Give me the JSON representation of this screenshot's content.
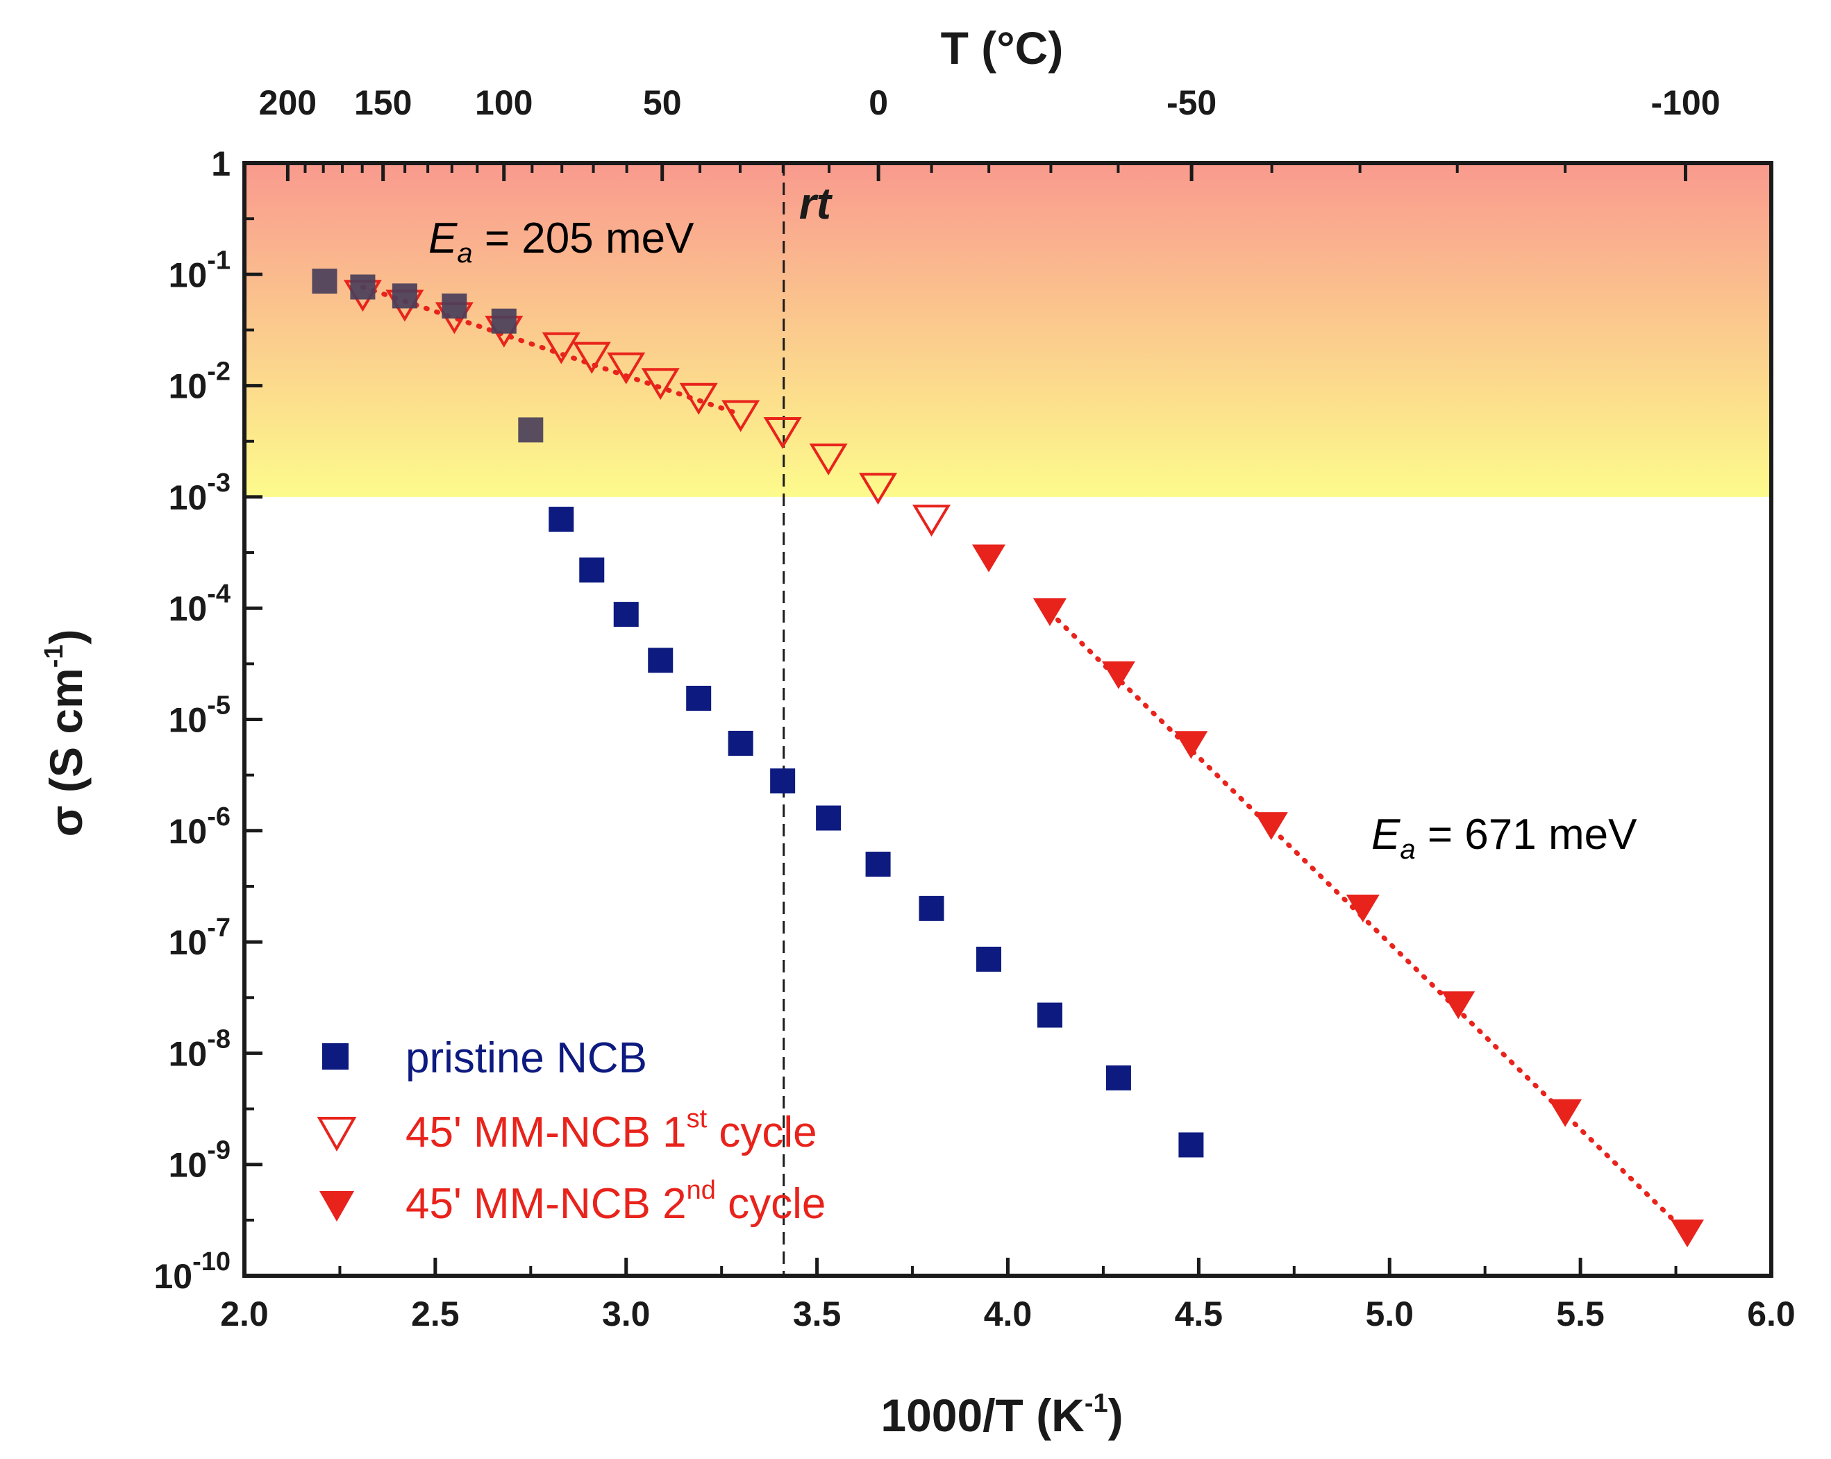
{
  "chart_data": {
    "type": "scatter",
    "xlabel": "1000/T (K",
    "xlabel_sup": "-1",
    "xlabel_end": ")",
    "ylabel": "σ (S cm",
    "ylabel_sup": "-1",
    "ylabel_end": ")",
    "top_axis_label": "T (°C)",
    "xlim": [
      2.0,
      6.0
    ],
    "ylim_log10": [
      -10,
      0
    ],
    "y_scale": "log",
    "x_ticks": [
      "2.0",
      "2.5",
      "3.0",
      "3.5",
      "4.0",
      "4.5",
      "5.0",
      "5.5",
      "6.0"
    ],
    "y_ticks": [
      {
        "exp": 0,
        "label": "1",
        "sup": ""
      },
      {
        "exp": -1,
        "label": "10",
        "sup": "-1"
      },
      {
        "exp": -2,
        "label": "10",
        "sup": "-2"
      },
      {
        "exp": -3,
        "label": "10",
        "sup": "-3"
      },
      {
        "exp": -4,
        "label": "10",
        "sup": "-4"
      },
      {
        "exp": -5,
        "label": "10",
        "sup": "-5"
      },
      {
        "exp": -6,
        "label": "10",
        "sup": "-6"
      },
      {
        "exp": -7,
        "label": "10",
        "sup": "-7"
      },
      {
        "exp": -8,
        "label": "10",
        "sup": "-8"
      },
      {
        "exp": -9,
        "label": "10",
        "sup": "-9"
      },
      {
        "exp": -10,
        "label": "10",
        "sup": "-10"
      }
    ],
    "top_ticks_celsius": [
      "200",
      "150",
      "100",
      "50",
      "0",
      "-50",
      "-100"
    ],
    "highlight_band": {
      "y_from": 0.001,
      "y_to": 1,
      "color_top": "#f99a8e",
      "color_bottom": "#fdfb8c"
    },
    "reference_line": {
      "x": 3.4129,
      "label": "rt"
    },
    "series": [
      {
        "name": "pristine NCB",
        "marker": "square",
        "color": "#0d1a80",
        "points": [
          [
            2.21,
            0.087
          ],
          [
            2.31,
            0.077
          ],
          [
            2.42,
            0.064
          ],
          [
            2.55,
            0.052
          ],
          [
            2.68,
            0.038
          ],
          [
            2.75,
            0.004
          ],
          [
            2.83,
            0.00063
          ],
          [
            2.91,
            0.00022
          ],
          [
            3.0,
            8.8e-05
          ],
          [
            3.09,
            3.4e-05
          ],
          [
            3.19,
            1.55e-05
          ],
          [
            3.3,
            6.1e-06
          ],
          [
            3.41,
            2.8e-06
          ],
          [
            3.53,
            1.3e-06
          ],
          [
            3.66,
            5e-07
          ],
          [
            3.8,
            2e-07
          ],
          [
            3.95,
            7e-08
          ],
          [
            4.11,
            2.2e-08
          ],
          [
            4.29,
            6e-09
          ],
          [
            4.48,
            1.5e-09
          ]
        ]
      },
      {
        "name_main": "45' MM-NCB 1",
        "name_sup": "st",
        "name_end": " cycle",
        "marker": "triangle-down-open",
        "color": "#e8231c",
        "points": [
          [
            2.31,
            0.065
          ],
          [
            2.42,
            0.053
          ],
          [
            2.55,
            0.041
          ],
          [
            2.68,
            0.031
          ],
          [
            2.83,
            0.022
          ],
          [
            2.91,
            0.018
          ],
          [
            3.0,
            0.0145
          ],
          [
            3.09,
            0.0105
          ],
          [
            3.19,
            0.0077
          ],
          [
            3.3,
            0.0054
          ],
          [
            3.41,
            0.0038
          ],
          [
            3.53,
            0.0022
          ],
          [
            3.66,
            0.0012
          ],
          [
            3.8,
            0.00062
          ]
        ]
      },
      {
        "name_main": "45' MM-NCB 2",
        "name_sup": "nd",
        "name_end": " cycle",
        "marker": "triangle-down-filled",
        "color": "#e8231c",
        "points": [
          [
            3.95,
            0.00028
          ],
          [
            4.11,
            9.2e-05
          ],
          [
            4.29,
            2.5e-05
          ],
          [
            4.48,
            5.9e-06
          ],
          [
            4.69,
            1.1e-06
          ],
          [
            4.93,
            2e-07
          ],
          [
            5.18,
            2.7e-08
          ],
          [
            5.46,
            2.9e-09
          ],
          [
            5.78,
            2.4e-10
          ]
        ]
      }
    ],
    "fit_lines": [
      {
        "from": [
          2.31,
          0.077
        ],
        "to": [
          3.3,
          0.0055
        ],
        "color": "#e8231c",
        "style": "dotted"
      },
      {
        "from": [
          4.11,
          9.2e-05
        ],
        "to": [
          5.78,
          2.4e-10
        ],
        "color": "#e8231c",
        "style": "dotted"
      }
    ],
    "annotations": [
      {
        "sym": "E",
        "sub": "a",
        "value": " = 205 meV",
        "color": "#e8231c"
      },
      {
        "sym": "E",
        "sub": "a",
        "value": " = 671 meV",
        "color": "#e8231c"
      }
    ],
    "legend_position": "bottom-left"
  }
}
